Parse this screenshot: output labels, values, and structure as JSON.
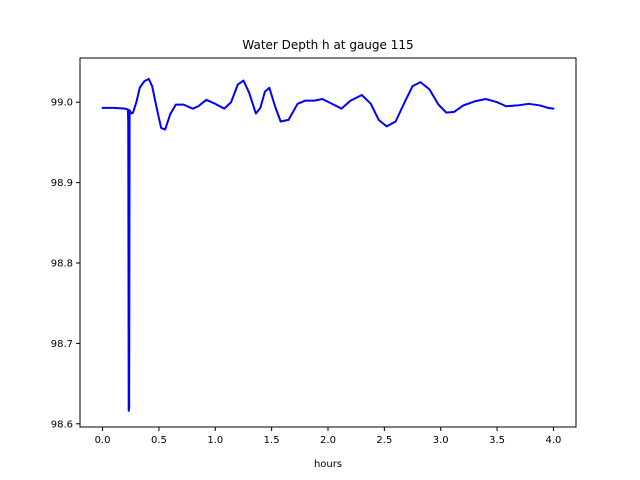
{
  "chart_data": {
    "type": "line",
    "title": "Water Depth h at gauge 115",
    "xlabel": "hours",
    "ylabel": "",
    "xlim": [
      -0.2,
      4.2
    ],
    "ylim": [
      98.596,
      99.055
    ],
    "xticks": [
      0.0,
      0.5,
      1.0,
      1.5,
      2.0,
      2.5,
      3.0,
      3.5,
      4.0
    ],
    "xtick_labels": [
      "0.0",
      "0.5",
      "1.0",
      "1.5",
      "2.0",
      "2.5",
      "3.0",
      "3.5",
      "4.0"
    ],
    "yticks": [
      98.6,
      98.7,
      98.8,
      98.9,
      99.0
    ],
    "ytick_labels": [
      "98.6",
      "98.7",
      "98.8",
      "98.9",
      "99.0"
    ],
    "grid": false,
    "legend": "none",
    "series": [
      {
        "color": "#0000ff",
        "points": [
          [
            0.0,
            98.993
          ],
          [
            0.1,
            98.993
          ],
          [
            0.2,
            98.992
          ],
          [
            0.225,
            98.991
          ],
          [
            0.228,
            98.975
          ],
          [
            0.232,
            98.616
          ],
          [
            0.236,
            98.62
          ],
          [
            0.24,
            98.99
          ],
          [
            0.255,
            98.986
          ],
          [
            0.27,
            98.987
          ],
          [
            0.3,
            99.0
          ],
          [
            0.33,
            99.018
          ],
          [
            0.37,
            99.026
          ],
          [
            0.41,
            99.029
          ],
          [
            0.44,
            99.02
          ],
          [
            0.48,
            98.993
          ],
          [
            0.52,
            98.968
          ],
          [
            0.555,
            98.966
          ],
          [
            0.6,
            98.985
          ],
          [
            0.65,
            98.997
          ],
          [
            0.72,
            98.997
          ],
          [
            0.8,
            98.992
          ],
          [
            0.85,
            98.995
          ],
          [
            0.92,
            99.003
          ],
          [
            1.0,
            98.998
          ],
          [
            1.08,
            98.992
          ],
          [
            1.14,
            99.0
          ],
          [
            1.2,
            99.022
          ],
          [
            1.25,
            99.027
          ],
          [
            1.3,
            99.012
          ],
          [
            1.36,
            98.986
          ],
          [
            1.4,
            98.993
          ],
          [
            1.44,
            99.013
          ],
          [
            1.48,
            99.018
          ],
          [
            1.53,
            98.995
          ],
          [
            1.58,
            98.976
          ],
          [
            1.65,
            98.978
          ],
          [
            1.73,
            98.998
          ],
          [
            1.8,
            99.002
          ],
          [
            1.88,
            99.002
          ],
          [
            1.95,
            99.004
          ],
          [
            2.05,
            98.997
          ],
          [
            2.12,
            98.992
          ],
          [
            2.2,
            99.002
          ],
          [
            2.3,
            99.009
          ],
          [
            2.38,
            98.998
          ],
          [
            2.45,
            98.978
          ],
          [
            2.52,
            98.97
          ],
          [
            2.6,
            98.976
          ],
          [
            2.68,
            99.0
          ],
          [
            2.75,
            99.02
          ],
          [
            2.82,
            99.025
          ],
          [
            2.9,
            99.016
          ],
          [
            2.98,
            98.997
          ],
          [
            3.05,
            98.987
          ],
          [
            3.12,
            98.988
          ],
          [
            3.2,
            98.996
          ],
          [
            3.3,
            99.001
          ],
          [
            3.4,
            99.004
          ],
          [
            3.5,
            99.0
          ],
          [
            3.58,
            98.995
          ],
          [
            3.68,
            98.996
          ],
          [
            3.78,
            98.998
          ],
          [
            3.88,
            98.996
          ],
          [
            3.95,
            98.993
          ],
          [
            4.0,
            98.992
          ]
        ]
      }
    ]
  }
}
